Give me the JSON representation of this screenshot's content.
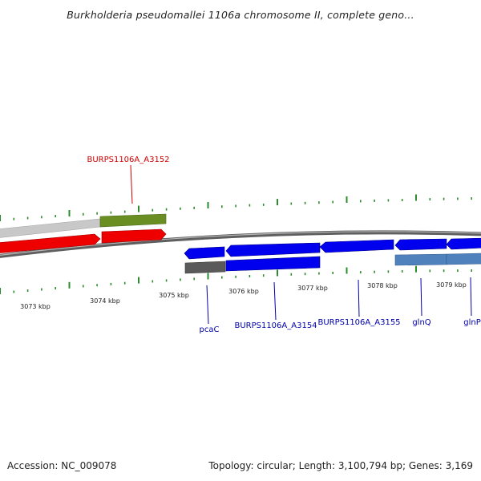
{
  "title": "Burkholderia pseudomallei 1106a chromosome II, complete geno...",
  "footer": {
    "accession": "Accession: NC_009078",
    "summary": "Topology: circular; Length: 3,100,794 bp; Genes: 3,169"
  },
  "colors": {
    "backbone": "#7a7a7a",
    "tick": "#2e8b2e",
    "forward_cds": "#ee0000",
    "forward_gene": "#c0c0c0",
    "forward_gene_highlight": "#6b8e23",
    "reverse_cds": "#0000ee",
    "reverse_gene_dark": "#5a5a5a",
    "reverse_gene_steel": "#4f81bd",
    "label_reverse": "#0000aa",
    "label_forward": "#cc0000",
    "kbp_label": "#222222"
  },
  "scale_labels": [
    "3073 kbp",
    "3074 kbp",
    "3075 kbp",
    "3076 kbp",
    "3077 kbp",
    "3078 kbp",
    "3079 kbp"
  ],
  "gene_labels": [
    {
      "id": "BURPS1106A_A3152",
      "text": "BURPS1106A_A3152",
      "strand": "forward"
    },
    {
      "id": "pcaC",
      "text": "pcaC",
      "strand": "reverse"
    },
    {
      "id": "BURPS1106A_A3154",
      "text": "BURPS1106A_A3154",
      "strand": "reverse"
    },
    {
      "id": "BURPS1106A_A3155",
      "text": "BURPS1106A_A3155",
      "strand": "reverse"
    },
    {
      "id": "glnQ",
      "text": "glnQ",
      "strand": "reverse"
    },
    {
      "id": "glnP",
      "text": "glnP",
      "strand": "reverse"
    }
  ]
}
